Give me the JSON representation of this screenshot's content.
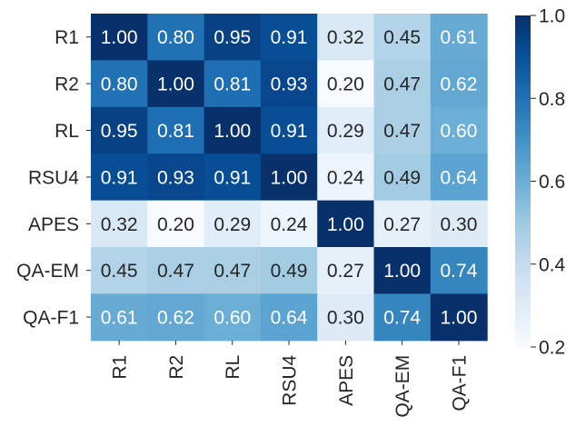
{
  "chart_data": {
    "type": "heatmap",
    "title": "",
    "xlabel": "",
    "ylabel": "",
    "rows": [
      "R1",
      "R2",
      "RL",
      "RSU4",
      "APES",
      "QA-EM",
      "QA-F1"
    ],
    "columns": [
      "R1",
      "R2",
      "RL",
      "RSU4",
      "APES",
      "QA-EM",
      "QA-F1"
    ],
    "values": [
      [
        1.0,
        0.8,
        0.95,
        0.91,
        0.32,
        0.45,
        0.61
      ],
      [
        0.8,
        1.0,
        0.81,
        0.93,
        0.2,
        0.47,
        0.62
      ],
      [
        0.95,
        0.81,
        1.0,
        0.91,
        0.29,
        0.47,
        0.6
      ],
      [
        0.91,
        0.93,
        0.91,
        1.0,
        0.24,
        0.49,
        0.64
      ],
      [
        0.32,
        0.2,
        0.29,
        0.24,
        1.0,
        0.27,
        0.3
      ],
      [
        0.45,
        0.47,
        0.47,
        0.49,
        0.27,
        1.0,
        0.74
      ],
      [
        0.61,
        0.62,
        0.6,
        0.64,
        0.3,
        0.74,
        1.0
      ]
    ],
    "value_labels": [
      [
        "1.00",
        "0.80",
        "0.95",
        "0.91",
        "0.32",
        "0.45",
        "0.61"
      ],
      [
        "0.80",
        "1.00",
        "0.81",
        "0.93",
        "0.20",
        "0.47",
        "0.62"
      ],
      [
        "0.95",
        "0.81",
        "1.00",
        "0.91",
        "0.29",
        "0.47",
        "0.60"
      ],
      [
        "0.91",
        "0.93",
        "0.91",
        "1.00",
        "0.24",
        "0.49",
        "0.64"
      ],
      [
        "0.32",
        "0.20",
        "0.29",
        "0.24",
        "1.00",
        "0.27",
        "0.30"
      ],
      [
        "0.45",
        "0.47",
        "0.47",
        "0.49",
        "0.27",
        "1.00",
        "0.74"
      ],
      [
        "0.61",
        "0.62",
        "0.60",
        "0.64",
        "0.30",
        "0.74",
        "1.00"
      ]
    ],
    "colormap": "Blues",
    "colorbar": {
      "range": [
        0.2,
        1.0
      ],
      "ticks": [
        0.2,
        0.4,
        0.6,
        0.8,
        1.0
      ],
      "tick_labels": [
        "0.2",
        "0.4",
        "0.6",
        "0.8",
        "1.0"
      ],
      "placement": "right"
    }
  }
}
